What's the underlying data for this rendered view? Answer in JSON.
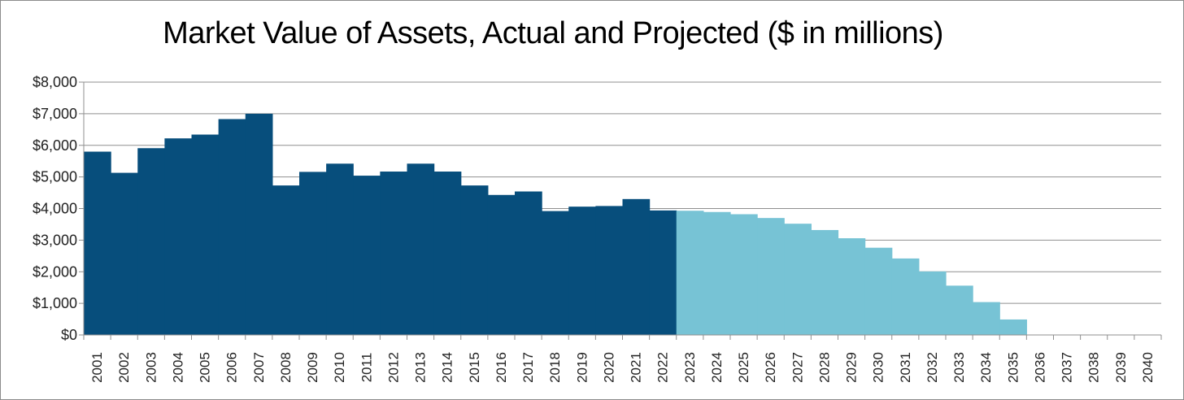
{
  "chart_data": {
    "type": "bar",
    "title": "Market Value of Assets, Actual and Projected ($ in millions)",
    "xlabel": "",
    "ylabel": "",
    "ylim": [
      0,
      8000
    ],
    "y_ticks": [
      "$0",
      "$1,000",
      "$2,000",
      "$3,000",
      "$4,000",
      "$5,000",
      "$6,000",
      "$7,000",
      "$8,000"
    ],
    "grid": true,
    "categories": [
      "2001",
      "2002",
      "2003",
      "2004",
      "2005",
      "2006",
      "2007",
      "2008",
      "2009",
      "2010",
      "2011",
      "2012",
      "2013",
      "2014",
      "2015",
      "2016",
      "2017",
      "2018",
      "2019",
      "2020",
      "2021",
      "2022",
      "2023",
      "2024",
      "2025",
      "2026",
      "2027",
      "2028",
      "2029",
      "2030",
      "2031",
      "2032",
      "2033",
      "2034",
      "2035",
      "2036",
      "2037",
      "2038",
      "2039",
      "2040"
    ],
    "series": [
      {
        "color": "#074e7c",
        "values": [
          5800,
          5130,
          5910,
          6220,
          6340,
          6830,
          7000,
          4730,
          5160,
          5420,
          5040,
          5170,
          5420,
          5170,
          4730,
          4430,
          4540,
          3920,
          4060,
          4080,
          4300,
          3940,
          null,
          null,
          null,
          null,
          null,
          null,
          null,
          null,
          null,
          null,
          null,
          null,
          null,
          null,
          null,
          null,
          null,
          null
        ]
      },
      {
        "color": "#77c3d5",
        "values": [
          null,
          null,
          null,
          null,
          null,
          null,
          null,
          null,
          null,
          null,
          null,
          null,
          null,
          null,
          null,
          null,
          null,
          null,
          null,
          null,
          null,
          null,
          3930,
          3890,
          3820,
          3700,
          3520,
          3320,
          3060,
          2760,
          2420,
          2010,
          1560,
          1040,
          490,
          0,
          0,
          0,
          0,
          0
        ]
      }
    ]
  }
}
